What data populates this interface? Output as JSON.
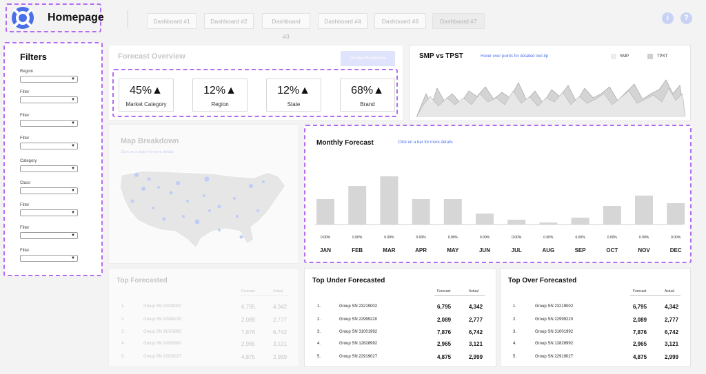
{
  "header": {
    "title": "Homepage",
    "tabs": [
      {
        "label": "Dashboard #1",
        "active": false
      },
      {
        "label": "Dashboard #2",
        "active": false
      },
      {
        "label": "Dashboard #3",
        "active": false
      },
      {
        "label": "Dashboard #4",
        "active": false
      },
      {
        "label": "Dashboard #6",
        "active": false
      },
      {
        "label": "Dashboard #7",
        "active": true
      }
    ],
    "icons": [
      "info-icon",
      "help-icon"
    ],
    "info_glyph": "i",
    "help_glyph": "?"
  },
  "colors": {
    "accent": "#4a6fe8",
    "highlight": "#b36bf0",
    "muted_accent": "#dfe3fb"
  },
  "filters": {
    "title": "Filters",
    "items": [
      {
        "label": "Region",
        "value": ""
      },
      {
        "label": "Filter",
        "value": ""
      },
      {
        "label": "Filter",
        "value": ""
      },
      {
        "label": "Filter",
        "value": ""
      },
      {
        "label": "Category",
        "value": ""
      },
      {
        "label": "Class",
        "value": ""
      },
      {
        "label": "Filter",
        "value": ""
      },
      {
        "label": "Filter",
        "value": ""
      },
      {
        "label": "Filter",
        "value": ""
      }
    ]
  },
  "overview": {
    "title": "Forecast Overview",
    "button": "Detailed Breakdown",
    "kpis": [
      {
        "value": "45%▲",
        "label": "Market Category"
      },
      {
        "value": "12%▲",
        "label": "Region"
      },
      {
        "value": "12%▲",
        "label": "State"
      },
      {
        "value": "68%▲",
        "label": "Brand"
      }
    ]
  },
  "smp": {
    "title": "SMP vs TPST",
    "hint": "Hover over points for detailed tool-tip",
    "legend": [
      "SMP",
      "TPST"
    ]
  },
  "map": {
    "title": "Map Breakdown",
    "hint": "Click on a state for more details"
  },
  "chart_data": {
    "type": "bar",
    "title": "Monthly Forecast",
    "subtitle": "Click on a bar for more details",
    "categories": [
      "JAN",
      "FEB",
      "MAR",
      "APR",
      "MAY",
      "JUN",
      "JUL",
      "AUG",
      "SEP",
      "OCT",
      "NOV",
      "DEC"
    ],
    "values": [
      37,
      56,
      70,
      37,
      37,
      16,
      7,
      3,
      10,
      27,
      42,
      31
    ],
    "data_labels": [
      "0.00%",
      "0.00%",
      "0.00%",
      "0.00%",
      "0.00%",
      "0.00%",
      "0.00%",
      "0.00%",
      "0.00%",
      "0.00%",
      "0.00%",
      "0.00%"
    ],
    "ylim": [
      0,
      80
    ],
    "grid": false
  },
  "tables": [
    {
      "title": "Top Forecasted",
      "col1": "Forecast",
      "col2": "Actual",
      "faded": true,
      "rows": [
        {
          "idx": "1.",
          "name": "Group SN 23219002",
          "forecast": "6,795",
          "actual": "4,342"
        },
        {
          "idx": "2.",
          "name": "Group SN 22999220",
          "forecast": "2,089",
          "actual": "2,777"
        },
        {
          "idx": "3.",
          "name": "Group SN 31001992",
          "forecast": "7,876",
          "actual": "6,742"
        },
        {
          "idx": "4.",
          "name": "Group SN 12828992",
          "forecast": "2,965",
          "actual": "3,121"
        },
        {
          "idx": "5.",
          "name": "Group SN 22919027",
          "forecast": "4,875",
          "actual": "2,999"
        }
      ]
    },
    {
      "title": "Top Under Forecasted",
      "col1": "Forecast",
      "col2": "Actual",
      "faded": false,
      "rows": [
        {
          "idx": "1.",
          "name": "Group SN 23219002",
          "forecast": "6,795",
          "actual": "4,342"
        },
        {
          "idx": "2.",
          "name": "Group SN 22999220",
          "forecast": "2,089",
          "actual": "2,777"
        },
        {
          "idx": "3.",
          "name": "Group SN 31001992",
          "forecast": "7,876",
          "actual": "6,742"
        },
        {
          "idx": "4.",
          "name": "Group SN 12828992",
          "forecast": "2,965",
          "actual": "3,121"
        },
        {
          "idx": "5.",
          "name": "Group SN 22919027",
          "forecast": "4,875",
          "actual": "2,999"
        }
      ]
    },
    {
      "title": "Top Over Forecasted",
      "col1": "Forecast",
      "col2": "Actual",
      "faded": false,
      "rows": [
        {
          "idx": "1.",
          "name": "Group SN 23219002",
          "forecast": "6,795",
          "actual": "4,342"
        },
        {
          "idx": "2.",
          "name": "Group SN 22999220",
          "forecast": "2,089",
          "actual": "2,777"
        },
        {
          "idx": "3.",
          "name": "Group SN 31001992",
          "forecast": "7,876",
          "actual": "6,742"
        },
        {
          "idx": "4.",
          "name": "Group SN 12828992",
          "forecast": "2,965",
          "actual": "3,121"
        },
        {
          "idx": "5.",
          "name": "Group SN 22919027",
          "forecast": "4,875",
          "actual": "2,999"
        }
      ]
    }
  ]
}
